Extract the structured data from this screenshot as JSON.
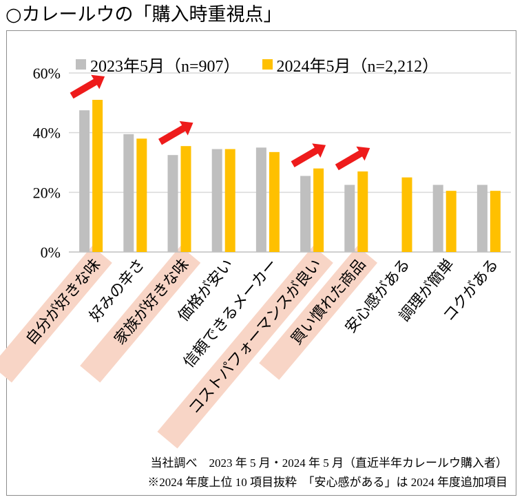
{
  "page_title": "○カレールウの「購入時重視点」",
  "colors": {
    "series_2023": "#bfbfbf",
    "series_2024": "#ffc000",
    "arrow": "#ee1b1b",
    "highlight": "#f8d5c6",
    "grid": "#d9d9d9",
    "frame": "#8c8c8c"
  },
  "chart_data": {
    "type": "bar",
    "title": "",
    "xlabel": "",
    "ylabel": "",
    "ylim": [
      0,
      60
    ],
    "yticks": [
      0,
      20,
      40,
      60
    ],
    "ytick_labels": [
      "0%",
      "20%",
      "40%",
      "60%"
    ],
    "grid": true,
    "legend_position": "top",
    "categories": [
      "自分が好きな味",
      "好みの辛さ",
      "家族が好きな味",
      "価格が安い",
      "信頼できるメーカー",
      "コストパフォーマンスが良い",
      "買い慣れた商品",
      "安心感がある",
      "調理が簡単",
      "コクがある"
    ],
    "series": [
      {
        "name": "2023年5月（n=907）",
        "values": [
          47.5,
          39.5,
          32.5,
          34.5,
          35,
          25.5,
          22.5,
          null,
          22.5,
          22.5
        ]
      },
      {
        "name": "2024年5月（n=2,212）",
        "values": [
          51,
          38,
          35.5,
          34.5,
          33.5,
          28,
          27,
          25,
          20.5,
          20.5
        ]
      }
    ],
    "highlighted_categories": [
      0,
      2,
      5,
      6
    ],
    "arrow_annotations": [
      0,
      2,
      5,
      6
    ]
  },
  "footnotes": [
    "当社調べ　2023 年 5 月・2024 年 5 月（直近半年カレールウ購入者）",
    "※2024 年度上位 10 項目抜粋　「安心感がある」は 2024 年度追加項目"
  ]
}
